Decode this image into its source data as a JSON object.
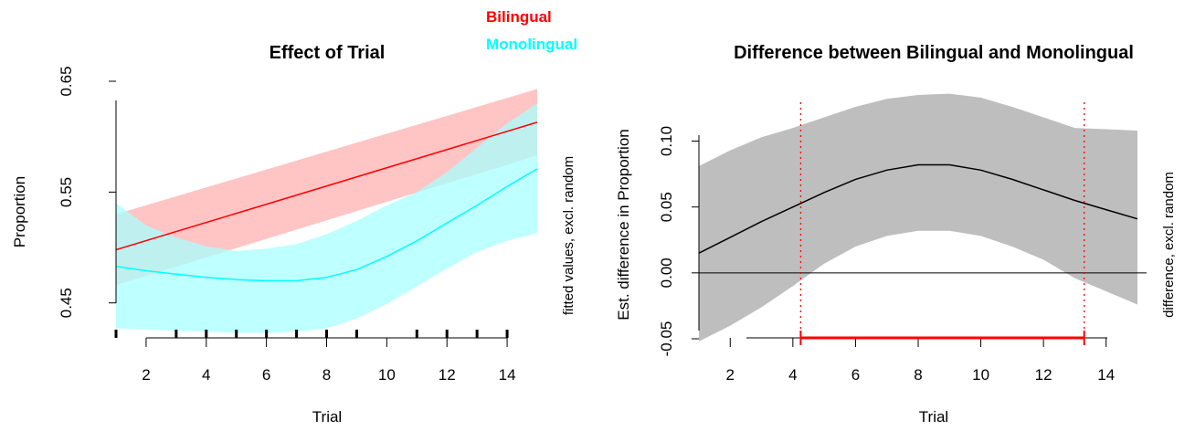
{
  "legend": [
    {
      "label": "Bilingual",
      "color": "#ff0000"
    },
    {
      "label": "Monolingual",
      "color": "#00ffff"
    }
  ],
  "chart_data": [
    {
      "type": "line",
      "title": "Effect of Trial",
      "xlabel": "Trial",
      "ylabel": "Proportion",
      "right_label": "fitted values, excl. random",
      "xlim": [
        1,
        15
      ],
      "ylim": [
        0.43,
        0.65
      ],
      "xticks": [
        2,
        4,
        6,
        8,
        10,
        12,
        14
      ],
      "yticks": [
        0.45,
        0.55,
        0.65
      ],
      "ytick_labels": [
        "0.45",
        "0.55",
        "0.65"
      ],
      "rug_x": [
        1,
        3,
        4,
        5,
        6,
        7,
        8,
        9,
        11,
        12,
        13,
        14
      ],
      "series": [
        {
          "name": "Bilingual",
          "color": "#ff0000",
          "band_color": "#ffb0b0",
          "x": [
            1,
            15
          ],
          "y": [
            0.498,
            0.613
          ],
          "lower": [
            0.466,
            0.583
          ],
          "upper": [
            0.53,
            0.643
          ]
        },
        {
          "name": "Monolingual",
          "color": "#00ffff",
          "band_color": "#a8ffff",
          "x": [
            1,
            2,
            3,
            4,
            5,
            6,
            7,
            8,
            9,
            10,
            11,
            12,
            13,
            14,
            15
          ],
          "y": [
            0.483,
            0.479,
            0.476,
            0.473,
            0.471,
            0.47,
            0.47,
            0.473,
            0.48,
            0.492,
            0.506,
            0.522,
            0.538,
            0.555,
            0.571
          ],
          "lower": [
            0.427,
            0.426,
            0.425,
            0.424,
            0.423,
            0.423,
            0.424,
            0.427,
            0.436,
            0.449,
            0.465,
            0.481,
            0.496,
            0.506,
            0.513
          ],
          "upper": [
            0.54,
            0.52,
            0.509,
            0.501,
            0.497,
            0.499,
            0.503,
            0.512,
            0.524,
            0.538,
            0.55,
            0.568,
            0.59,
            0.612,
            0.63
          ]
        }
      ]
    },
    {
      "type": "line",
      "title": "Difference between Bilingual and Monolingual",
      "xlabel": "Trial",
      "ylabel": "Est. difference in Proportion",
      "right_label": "difference, excl. random",
      "xlim": [
        1,
        15
      ],
      "ylim": [
        -0.05,
        0.135
      ],
      "xticks": [
        2,
        4,
        6,
        8,
        10,
        12,
        14
      ],
      "yticks": [
        -0.05,
        0.0,
        0.05,
        0.1
      ],
      "ytick_labels": [
        "-0.05",
        "0.00",
        "0.05",
        "0.10"
      ],
      "zero_line": 0,
      "significant_region": [
        4.25,
        13.3
      ],
      "series": [
        {
          "name": "difference",
          "color": "#000000",
          "band_color": "#bebebe",
          "x": [
            1,
            2,
            3,
            4,
            5,
            6,
            7,
            8,
            9,
            10,
            11,
            12,
            13,
            14,
            15
          ],
          "y": [
            0.015,
            0.027,
            0.039,
            0.05,
            0.061,
            0.071,
            0.078,
            0.082,
            0.082,
            0.078,
            0.071,
            0.063,
            0.055,
            0.048,
            0.041
          ],
          "lower": [
            -0.052,
            -0.04,
            -0.026,
            -0.01,
            0.007,
            0.02,
            0.028,
            0.032,
            0.032,
            0.028,
            0.02,
            0.01,
            -0.004,
            -0.014,
            -0.024
          ],
          "upper": [
            0.081,
            0.093,
            0.103,
            0.11,
            0.118,
            0.126,
            0.132,
            0.135,
            0.136,
            0.133,
            0.126,
            0.118,
            0.11,
            0.109,
            0.108
          ]
        }
      ]
    }
  ]
}
